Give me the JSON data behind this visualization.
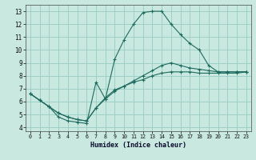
{
  "xlabel": "Humidex (Indice chaleur)",
  "bg_color": "#c8e8e0",
  "grid_color": "#98ccc4",
  "line_color": "#1e6b5e",
  "xlim": [
    -0.5,
    23.5
  ],
  "ylim": [
    3.7,
    13.5
  ],
  "xticks": [
    0,
    1,
    2,
    3,
    4,
    5,
    6,
    7,
    8,
    9,
    10,
    11,
    12,
    13,
    14,
    15,
    16,
    17,
    18,
    19,
    20,
    21,
    22,
    23
  ],
  "yticks": [
    4,
    5,
    6,
    7,
    8,
    9,
    10,
    11,
    12,
    13
  ],
  "series": [
    {
      "x": [
        0,
        1,
        2,
        3,
        4,
        5,
        6,
        7,
        8,
        9,
        10,
        11,
        12,
        13,
        14,
        15,
        16,
        17,
        18,
        19,
        20,
        21,
        22,
        23
      ],
      "y": [
        6.6,
        6.1,
        5.6,
        4.8,
        4.5,
        4.4,
        4.3,
        7.5,
        6.2,
        9.3,
        10.8,
        12.0,
        12.9,
        13.0,
        13.0,
        12.0,
        11.2,
        10.5,
        10.0,
        8.8,
        8.3,
        8.3,
        8.3,
        8.3
      ]
    },
    {
      "x": [
        0,
        1,
        2,
        3,
        4,
        5,
        6,
        7,
        8,
        9,
        10,
        11,
        12,
        13,
        14,
        15,
        16,
        17,
        18,
        19,
        20,
        21,
        22,
        23
      ],
      "y": [
        6.6,
        6.1,
        5.6,
        5.1,
        4.8,
        4.6,
        4.5,
        5.5,
        6.2,
        6.8,
        7.2,
        7.6,
        8.0,
        8.4,
        8.8,
        9.0,
        8.8,
        8.6,
        8.5,
        8.4,
        8.3,
        8.3,
        8.3,
        8.3
      ]
    },
    {
      "x": [
        0,
        1,
        2,
        3,
        4,
        5,
        6,
        7,
        8,
        9,
        10,
        11,
        12,
        13,
        14,
        15,
        16,
        17,
        18,
        19,
        20,
        21,
        22,
        23
      ],
      "y": [
        6.6,
        6.1,
        5.6,
        5.1,
        4.8,
        4.6,
        4.5,
        5.5,
        6.3,
        6.9,
        7.2,
        7.5,
        7.7,
        8.0,
        8.2,
        8.3,
        8.3,
        8.3,
        8.2,
        8.2,
        8.2,
        8.2,
        8.2,
        8.3
      ]
    }
  ]
}
